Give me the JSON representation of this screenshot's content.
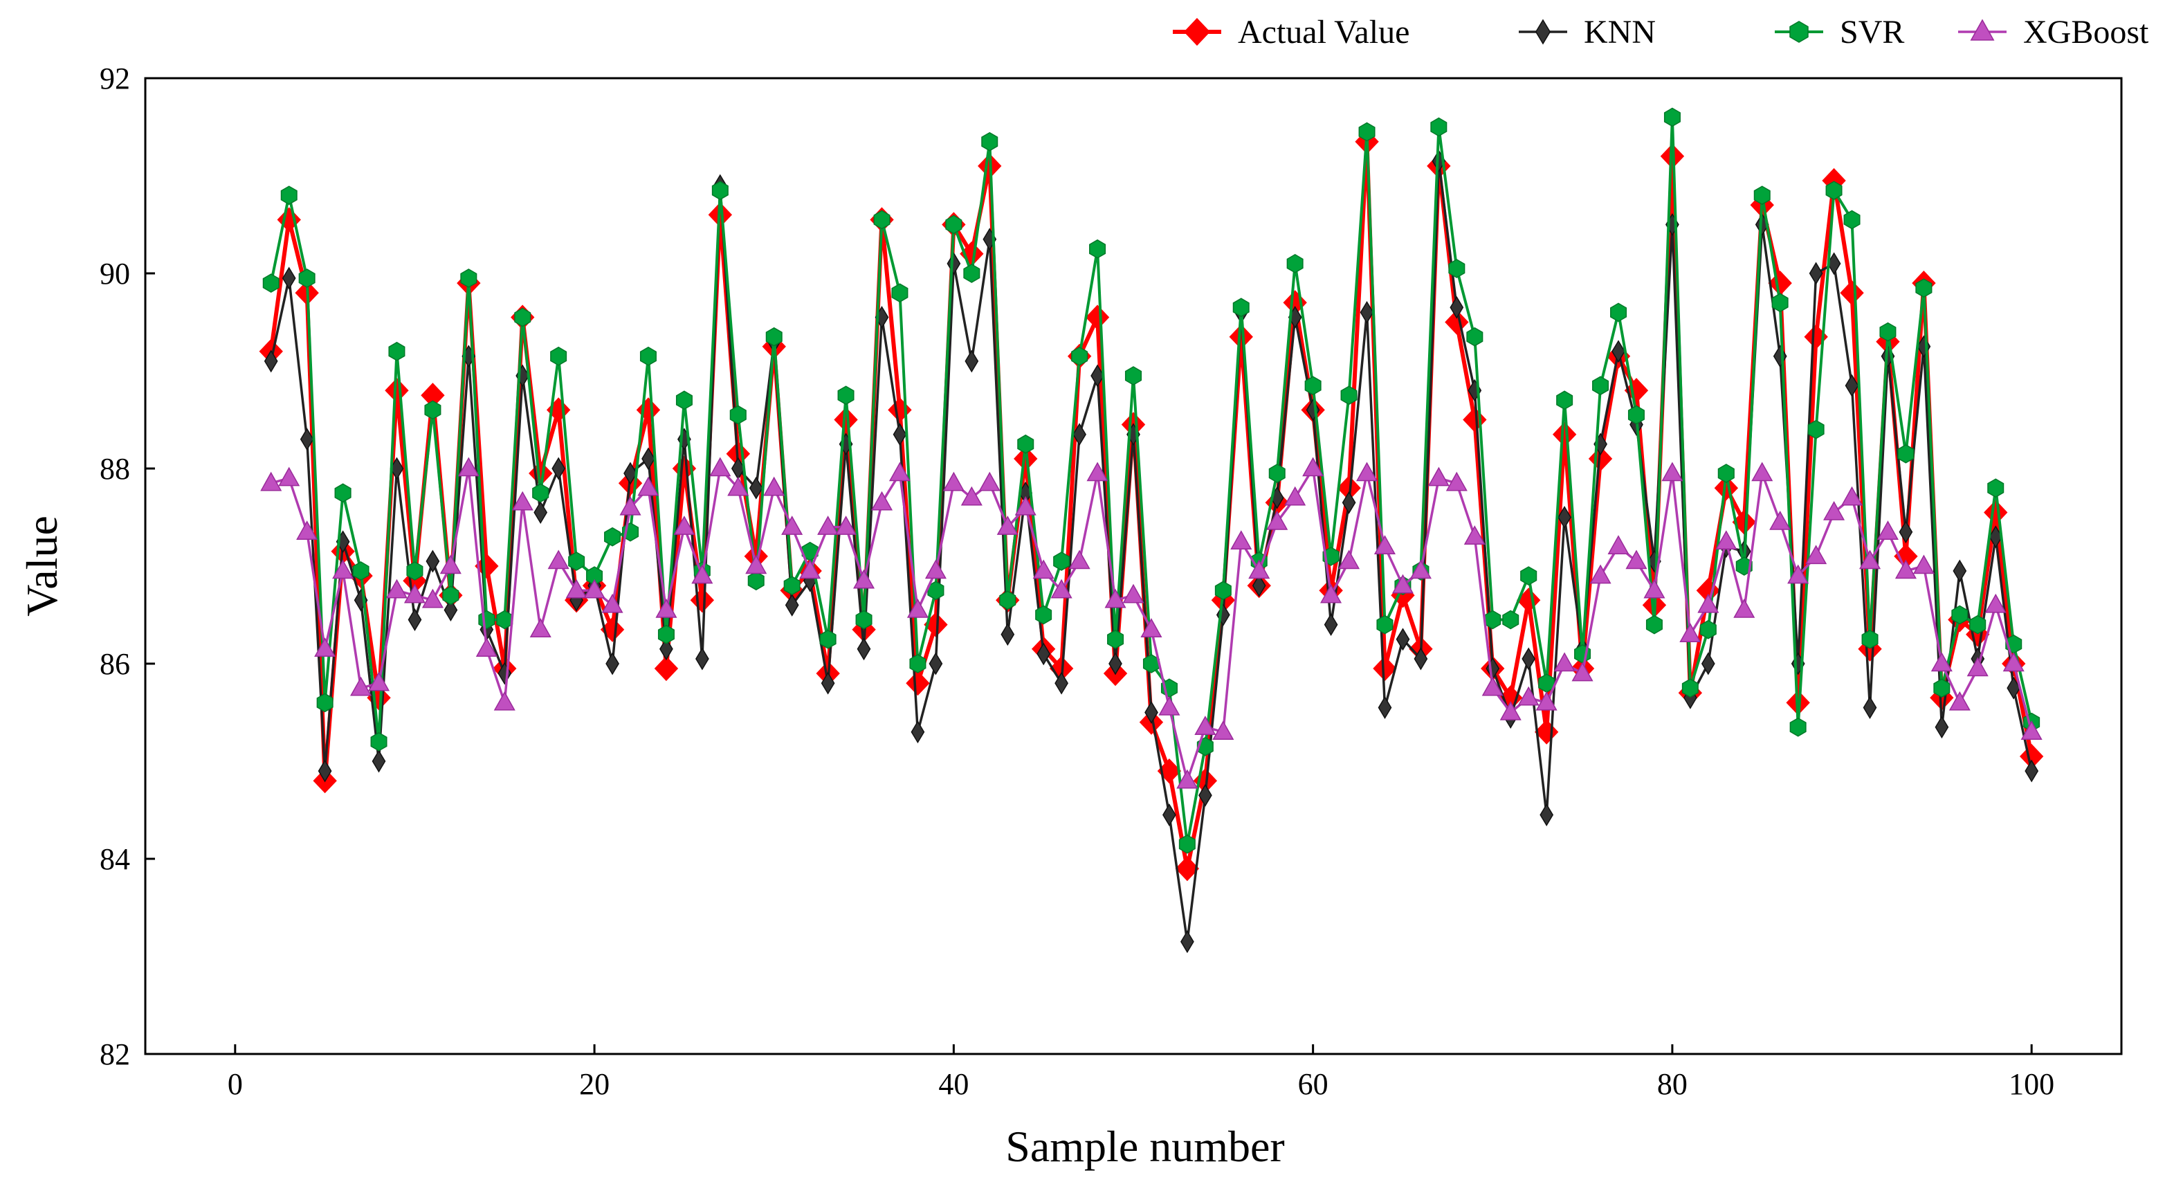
{
  "chart_data": {
    "type": "line",
    "title": "",
    "xlabel": "Sample number",
    "ylabel": "Value",
    "xlim": [
      -5,
      105
    ],
    "ylim": [
      82,
      92
    ],
    "xticks": [
      0,
      20,
      40,
      60,
      80,
      100
    ],
    "yticks": [
      82,
      84,
      86,
      88,
      90,
      92
    ],
    "legend_position": "top-right",
    "x": [
      2,
      3,
      4,
      5,
      6,
      7,
      8,
      9,
      10,
      11,
      12,
      13,
      14,
      15,
      16,
      17,
      18,
      19,
      20,
      21,
      22,
      23,
      24,
      25,
      26,
      27,
      28,
      29,
      30,
      31,
      32,
      33,
      34,
      35,
      36,
      37,
      38,
      39,
      40,
      41,
      42,
      43,
      44,
      45,
      46,
      47,
      48,
      49,
      50,
      51,
      52,
      53,
      54,
      55,
      56,
      57,
      58,
      59,
      60,
      61,
      62,
      63,
      64,
      65,
      66,
      67,
      68,
      69,
      70,
      71,
      72,
      73,
      74,
      75,
      76,
      77,
      78,
      79,
      80,
      81,
      82,
      83,
      84,
      85,
      86,
      87,
      88,
      89,
      90,
      91,
      92,
      93,
      94,
      95,
      96,
      97,
      98,
      99,
      100
    ],
    "series": [
      {
        "name": "Actual Value",
        "color": "#ff0000",
        "marker": "diamond",
        "values": [
          89.2,
          90.55,
          89.8,
          84.8,
          87.15,
          86.9,
          85.65,
          88.8,
          86.85,
          88.75,
          86.7,
          89.9,
          87.0,
          85.95,
          89.55,
          87.95,
          88.6,
          86.65,
          86.8,
          86.35,
          87.85,
          88.6,
          85.95,
          88.0,
          86.65,
          90.6,
          88.15,
          87.1,
          89.25,
          86.75,
          86.95,
          85.9,
          88.5,
          86.35,
          90.55,
          88.6,
          85.8,
          86.4,
          90.5,
          90.2,
          91.1,
          86.65,
          88.1,
          86.15,
          85.95,
          89.15,
          89.55,
          85.9,
          88.45,
          85.4,
          84.9,
          83.9,
          84.8,
          86.65,
          89.35,
          86.8,
          87.65,
          89.7,
          88.6,
          86.75,
          87.8,
          91.35,
          85.95,
          86.7,
          86.15,
          91.1,
          89.5,
          88.5,
          85.95,
          85.65,
          86.65,
          85.3,
          88.35,
          85.95,
          88.1,
          89.15,
          88.8,
          86.6,
          91.2,
          85.7,
          86.75,
          87.8,
          87.45,
          90.7,
          89.9,
          85.6,
          89.35,
          90.95,
          89.8,
          86.15,
          89.3,
          87.1,
          89.9,
          85.65,
          86.45,
          86.3,
          87.55,
          86.0,
          85.05
        ]
      },
      {
        "name": "KNN",
        "color": "#222222",
        "marker": "thin-diamond",
        "values": [
          89.1,
          89.95,
          88.3,
          84.9,
          87.25,
          86.65,
          85.0,
          88.0,
          86.45,
          87.05,
          86.55,
          89.15,
          86.35,
          85.9,
          88.95,
          87.55,
          88.0,
          86.65,
          86.8,
          86.0,
          87.95,
          88.1,
          86.15,
          88.3,
          86.05,
          90.9,
          88.0,
          87.8,
          89.3,
          86.6,
          86.85,
          85.8,
          88.25,
          86.15,
          89.55,
          88.35,
          85.3,
          86.0,
          90.1,
          89.1,
          90.35,
          86.3,
          87.75,
          86.1,
          85.8,
          88.35,
          88.95,
          86.0,
          88.35,
          85.5,
          84.45,
          83.15,
          84.65,
          86.5,
          89.6,
          86.8,
          87.7,
          89.55,
          88.6,
          86.4,
          87.65,
          89.6,
          85.55,
          86.25,
          86.05,
          91.15,
          89.65,
          88.8,
          85.95,
          85.45,
          86.05,
          84.45,
          87.5,
          86.15,
          88.25,
          89.2,
          88.45,
          87.05,
          90.5,
          85.65,
          86.0,
          87.2,
          87.15,
          90.5,
          89.15,
          86.0,
          90.0,
          90.1,
          88.85,
          85.55,
          89.15,
          87.35,
          89.25,
          85.35,
          86.95,
          86.05,
          87.3,
          85.75,
          84.9
        ]
      },
      {
        "name": "SVR",
        "color": "#009933",
        "marker": "hexagon",
        "values": [
          89.9,
          90.8,
          89.95,
          85.6,
          87.75,
          86.95,
          85.2,
          89.2,
          86.95,
          88.6,
          86.7,
          89.95,
          86.45,
          86.45,
          89.55,
          87.75,
          89.15,
          87.05,
          86.9,
          87.3,
          87.35,
          89.15,
          86.3,
          88.7,
          86.95,
          90.85,
          88.55,
          86.85,
          89.35,
          86.8,
          87.15,
          86.25,
          88.75,
          86.45,
          90.55,
          89.8,
          86.0,
          86.75,
          90.5,
          90.0,
          91.35,
          86.65,
          88.25,
          86.5,
          87.05,
          89.15,
          90.25,
          86.25,
          88.95,
          86.0,
          85.75,
          84.15,
          85.15,
          86.75,
          89.65,
          87.05,
          87.95,
          90.1,
          88.85,
          87.1,
          88.75,
          91.45,
          86.4,
          86.8,
          86.95,
          91.5,
          90.05,
          89.35,
          86.45,
          86.45,
          86.9,
          85.8,
          88.7,
          86.1,
          88.85,
          89.6,
          88.55,
          86.4,
          91.6,
          85.75,
          86.35,
          87.95,
          87.0,
          90.8,
          89.7,
          85.35,
          88.4,
          90.85,
          90.55,
          86.25,
          89.4,
          88.15,
          89.85,
          85.75,
          86.5,
          86.4,
          87.8,
          86.2,
          85.4
        ]
      },
      {
        "name": "XGBoost",
        "color": "#b03bb0",
        "marker": "triangle",
        "values": [
          87.85,
          87.9,
          87.35,
          86.15,
          86.95,
          85.75,
          85.8,
          86.75,
          86.7,
          86.65,
          87.0,
          88.0,
          86.15,
          85.6,
          87.65,
          86.35,
          87.05,
          86.75,
          86.75,
          86.6,
          87.6,
          87.8,
          86.55,
          87.4,
          86.9,
          88.0,
          87.8,
          87.0,
          87.8,
          87.4,
          86.95,
          87.4,
          87.4,
          86.85,
          87.65,
          87.95,
          86.55,
          86.95,
          87.85,
          87.7,
          87.85,
          87.4,
          87.6,
          86.95,
          86.75,
          87.05,
          87.95,
          86.65,
          86.7,
          86.35,
          85.55,
          84.8,
          85.35,
          85.3,
          87.25,
          86.95,
          87.45,
          87.7,
          88.0,
          86.7,
          87.05,
          87.95,
          87.2,
          86.8,
          86.95,
          87.9,
          87.85,
          87.3,
          85.75,
          85.5,
          85.65,
          85.6,
          86.0,
          85.9,
          86.9,
          87.2,
          87.05,
          86.75,
          87.95,
          86.3,
          86.6,
          87.25,
          86.55,
          87.95,
          87.45,
          86.9,
          87.1,
          87.55,
          87.7,
          87.05,
          87.35,
          86.95,
          87.0,
          86.0,
          85.6,
          85.95,
          86.6,
          86.0,
          85.3
        ]
      }
    ]
  }
}
